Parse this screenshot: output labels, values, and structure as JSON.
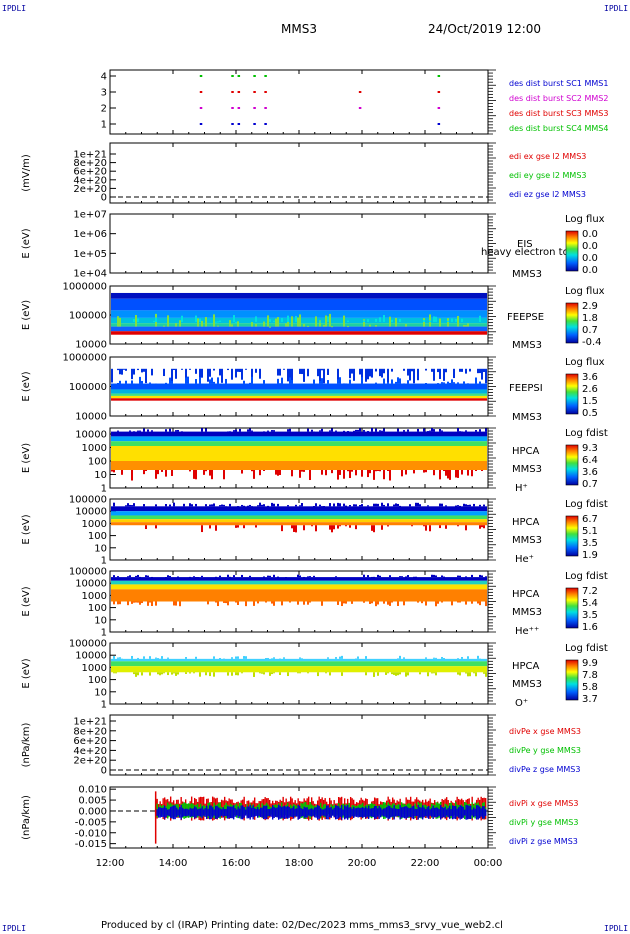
{
  "corners": {
    "tl": "IPDLI",
    "tr": "IPDLI",
    "bl": "IPDLI",
    "br": "IPDLI"
  },
  "header": {
    "spacecraft": "MMS3",
    "datetime": "24/Oct/2019 12:00"
  },
  "footer": {
    "text": "Produced by cl (IRAP)   Printing date: 02/Dec/2023   mms_mms3_srvy_vue_web2.cl"
  },
  "time_axis": {
    "ticks": [
      "12:00",
      "14:00",
      "16:00",
      "18:00",
      "20:00",
      "22:00",
      "00:00"
    ]
  },
  "colors": {
    "red": "#e00000",
    "green": "#00c000",
    "blue": "#0000d0",
    "magenta": "#d000d0"
  },
  "chart_data": [
    {
      "type": "scatter",
      "id": "burst",
      "ylim": [
        0.5,
        4.5
      ],
      "yticks": [
        "1",
        "2",
        "3",
        "4"
      ],
      "series": [
        {
          "name": "des dist burst SC1 MMS1",
          "color": "#0000d0"
        },
        {
          "name": "des dist burst SC2 MMS2",
          "color": "#d000d0"
        },
        {
          "name": "des dist burst SC3 MMS3",
          "color": "#e00000"
        },
        {
          "name": "des dist burst SC4 MMS4",
          "color": "#00c000"
        }
      ],
      "marks": [
        {
          "t": 14.85,
          "sc": [
            1,
            2,
            3,
            4
          ]
        },
        {
          "t": 15.85,
          "sc": [
            1,
            2,
            3,
            4
          ]
        },
        {
          "t": 16.05,
          "sc": [
            1,
            2,
            3,
            4
          ]
        },
        {
          "t": 16.55,
          "sc": [
            1,
            2,
            3,
            4
          ]
        },
        {
          "t": 16.9,
          "sc": [
            1,
            2,
            3,
            4
          ]
        },
        {
          "t": 19.9,
          "sc": [
            2,
            3
          ]
        },
        {
          "t": 22.4,
          "sc": [
            1,
            2,
            3,
            4
          ]
        }
      ]
    },
    {
      "type": "line",
      "id": "edi",
      "ylabel": "(mV/m)",
      "yticks": [
        "0",
        "2e+20",
        "4e+20",
        "6e+20",
        "8e+20",
        "1e+21"
      ],
      "series": [
        {
          "name": "edi ex gse l2 MMS3",
          "color": "#e00000"
        },
        {
          "name": "edi ey gse l2 MMS3",
          "color": "#00c000"
        },
        {
          "name": "edi ez gse l2 MMS3",
          "color": "#0000d0"
        }
      ]
    },
    {
      "type": "heatmap",
      "id": "eis",
      "ylabel": "E (eV)",
      "yticks": [
        "1e+04",
        "1e+05",
        "1e+06",
        "1e+07"
      ],
      "labels": [
        "EIS",
        "MMS3"
      ],
      "overlay": "heavy electron to",
      "cbar_title": "Log flux",
      "cbar_ticks": [
        "0.0",
        "0.0",
        "0.0",
        "0.0"
      ]
    },
    {
      "type": "heatmap",
      "id": "feepse",
      "ylabel": "E (eV)",
      "yticks": [
        "10000",
        "100000",
        "1000000"
      ],
      "labels": [
        "FEEPSE",
        "MMS3"
      ],
      "cbar_title": "Log flux",
      "cbar_ticks": [
        "2.9",
        "1.8",
        "0.7",
        "-0.4"
      ]
    },
    {
      "type": "heatmap",
      "id": "feepsi",
      "ylabel": "E (eV)",
      "yticks": [
        "10000",
        "100000",
        "1000000"
      ],
      "labels": [
        "FEEPSI",
        "MMS3"
      ],
      "cbar_title": "Log flux",
      "cbar_ticks": [
        "3.6",
        "2.6",
        "1.5",
        "0.5"
      ]
    },
    {
      "type": "heatmap",
      "id": "hpca_h",
      "ylabel": "E (eV)",
      "yticks": [
        "1",
        "10",
        "100",
        "1000",
        "10000"
      ],
      "labels": [
        "HPCA",
        "MMS3",
        "H⁺"
      ],
      "cbar_title": "Log fdist",
      "cbar_ticks": [
        "9.3",
        "6.4",
        "3.6",
        "0.7"
      ]
    },
    {
      "type": "heatmap",
      "id": "hpca_he",
      "ylabel": "E (eV)",
      "yticks": [
        "1",
        "10",
        "100",
        "1000",
        "10000",
        "100000"
      ],
      "labels": [
        "HPCA",
        "MMS3",
        "He⁺"
      ],
      "cbar_title": "Log fdist",
      "cbar_ticks": [
        "6.7",
        "5.1",
        "3.5",
        "1.9"
      ]
    },
    {
      "type": "heatmap",
      "id": "hpca_hepp",
      "ylabel": "E (eV)",
      "yticks": [
        "1",
        "10",
        "100",
        "1000",
        "10000",
        "100000"
      ],
      "labels": [
        "HPCA",
        "MMS3",
        "He⁺⁺"
      ],
      "cbar_title": "Log fdist",
      "cbar_ticks": [
        "7.2",
        "5.4",
        "3.5",
        "1.6"
      ]
    },
    {
      "type": "heatmap",
      "id": "hpca_o",
      "ylabel": "E (eV)",
      "yticks": [
        "1",
        "10",
        "100",
        "1000",
        "10000",
        "100000"
      ],
      "labels": [
        "HPCA",
        "MMS3",
        "O⁺"
      ],
      "cbar_title": "Log fdist",
      "cbar_ticks": [
        "9.9",
        "7.8",
        "5.8",
        "3.7"
      ]
    },
    {
      "type": "line",
      "id": "divpe",
      "ylabel": "(nPa/km)",
      "yticks": [
        "0",
        "2e+20",
        "4e+20",
        "6e+20",
        "8e+20",
        "1e+21"
      ],
      "series": [
        {
          "name": "divPe x gse MMS3",
          "color": "#e00000"
        },
        {
          "name": "divPe y gse MMS3",
          "color": "#00c000"
        },
        {
          "name": "divPe z gse MMS3",
          "color": "#0000d0"
        }
      ]
    },
    {
      "type": "line",
      "id": "divpi",
      "ylabel": "(nPa/km)",
      "ylim": [
        -0.017,
        0.011
      ],
      "yticks": [
        "-0.015",
        "-0.010",
        "-0.005",
        "0.000",
        "0.005",
        "0.010"
      ],
      "series": [
        {
          "name": "divPi x gse MMS3",
          "color": "#e00000"
        },
        {
          "name": "divPi y gse MMS3",
          "color": "#00c000"
        },
        {
          "name": "divPi z gse MMS3",
          "color": "#0000d0"
        }
      ]
    }
  ]
}
